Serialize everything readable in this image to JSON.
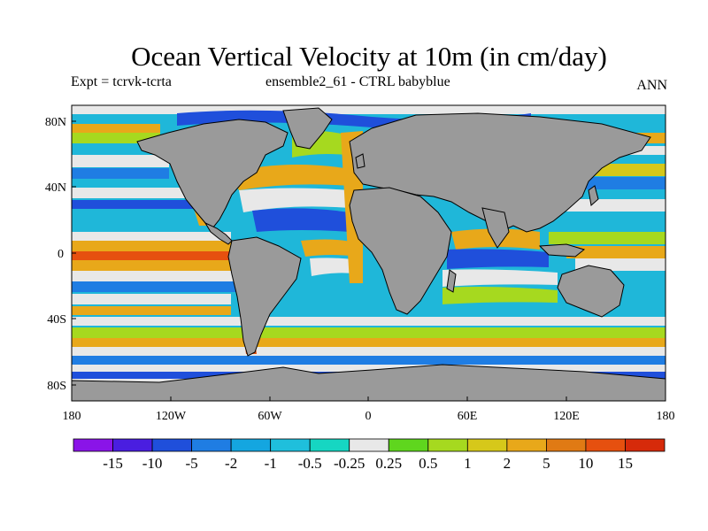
{
  "header": {
    "title": "Ocean Vertical Velocity at 10m (in cm/day)",
    "expt": "Expt = tcrvk-tcrta",
    "ensemble": "ensemble2_61 - CTRL babyblue",
    "period": "ANN"
  },
  "map": {
    "ocean_base_color": "#1fb7d9",
    "land_color": "#9a9a9a",
    "coastline_color": "#000000",
    "lat_ticks": [
      "80N",
      "40N",
      "0",
      "40S",
      "80S"
    ],
    "lon_ticks": [
      "180",
      "120W",
      "60W",
      "0",
      "60E",
      "120E",
      "180"
    ]
  },
  "colorbar": {
    "labels": [
      "-15",
      "-10",
      "-5",
      "-2",
      "-1",
      "-0.5",
      "-0.25",
      "0.25",
      "0.5",
      "1",
      "2",
      "5",
      "10",
      "15"
    ],
    "colors": [
      "#8a14e8",
      "#4a1ee0",
      "#1f4fdb",
      "#1f7de3",
      "#14a6e0",
      "#1fbfdc",
      "#16d6c2",
      "#e8e8e8",
      "#5fd61e",
      "#a6d91f",
      "#d6c81a",
      "#e8a81a",
      "#e07a14",
      "#e6500f",
      "#d62a0a"
    ]
  }
}
